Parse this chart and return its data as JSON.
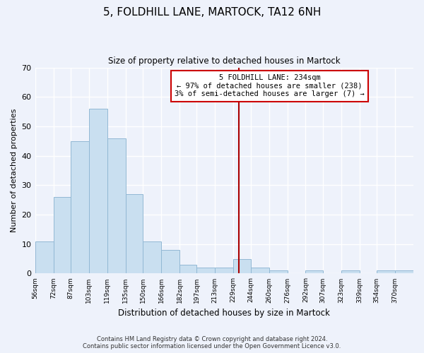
{
  "title": "5, FOLDHILL LANE, MARTOCK, TA12 6NH",
  "subtitle": "Size of property relative to detached houses in Martock",
  "xlabel": "Distribution of detached houses by size in Martock",
  "ylabel": "Number of detached properties",
  "bar_labels": [
    "56sqm",
    "72sqm",
    "87sqm",
    "103sqm",
    "119sqm",
    "135sqm",
    "150sqm",
    "166sqm",
    "182sqm",
    "197sqm",
    "213sqm",
    "229sqm",
    "244sqm",
    "260sqm",
    "276sqm",
    "292sqm",
    "307sqm",
    "323sqm",
    "339sqm",
    "354sqm",
    "370sqm"
  ],
  "bar_values": [
    11,
    26,
    45,
    56,
    46,
    27,
    11,
    8,
    3,
    2,
    2,
    5,
    2,
    1,
    0,
    1,
    0,
    1,
    0,
    1,
    1
  ],
  "bar_color": "#c9dff0",
  "bar_edge_color": "#92b8d4",
  "ylim": [
    0,
    70
  ],
  "yticks": [
    0,
    10,
    20,
    30,
    40,
    50,
    60,
    70
  ],
  "bin_edges": [
    56,
    72,
    87,
    103,
    119,
    135,
    150,
    166,
    182,
    197,
    213,
    229,
    244,
    260,
    276,
    292,
    307,
    323,
    339,
    354,
    370,
    386
  ],
  "property_line_x": 234,
  "annotation_title": "5 FOLDHILL LANE: 234sqm",
  "annotation_line1": "← 97% of detached houses are smaller (238)",
  "annotation_line2": "3% of semi-detached houses are larger (7) →",
  "footer_line1": "Contains HM Land Registry data © Crown copyright and database right 2024.",
  "footer_line2": "Contains public sector information licensed under the Open Government Licence v3.0.",
  "background_color": "#eef2fb",
  "grid_color": "#ffffff",
  "annotation_box_facecolor": "#ffffff",
  "annotation_box_edgecolor": "#cc0000",
  "property_line_color": "#aa0000"
}
